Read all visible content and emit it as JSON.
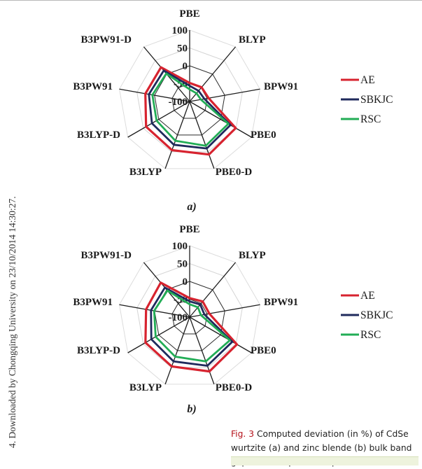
{
  "page": {
    "sidebar_text": "4. Downloaded by Chongqing University on 23/10/2014 14:30:27."
  },
  "caption": {
    "fig_label": "Fig. 3",
    "text": "Computed deviation (in %) of CdSe wurtzite (a) and zinc blende (b) bulk band gaps with respect to experimental data."
  },
  "chart_data": [
    {
      "type": "radar",
      "panel_label": "a)",
      "categories": [
        "PBE",
        "BLYP",
        "BPW91",
        "PBE0",
        "PBE0-D",
        "B3LYP",
        "B3LYP-D",
        "B3PW91",
        "B3PW91-D"
      ],
      "tick_labels": [
        "100",
        "50",
        "0",
        "-50",
        "-100"
      ],
      "rlim": [
        -100,
        100
      ],
      "grid": true,
      "legend_position": "right",
      "series": [
        {
          "name": "AE",
          "color": "#d7232f",
          "values": [
            -48,
            -48,
            -46,
            49,
            58,
            45,
            41,
            26,
            25
          ]
        },
        {
          "name": "SBKJC",
          "color": "#1f2a5c",
          "values": [
            -56,
            -61,
            -58,
            32,
            40,
            29,
            22,
            16,
            13
          ]
        },
        {
          "name": "RSC",
          "color": "#22ad56",
          "values": [
            -66,
            -70,
            -68,
            25,
            32,
            17,
            7,
            6,
            2
          ]
        }
      ]
    },
    {
      "type": "radar",
      "panel_label": "b)",
      "categories": [
        "PBE",
        "BLYP",
        "BPW91",
        "PBE0",
        "PBE0-D",
        "B3LYP",
        "B3LYP-D",
        "B3PW91",
        "B3PW91-D"
      ],
      "tick_labels": [
        "100",
        "50",
        "0",
        "-50",
        "-100"
      ],
      "rlim": [
        -100,
        100
      ],
      "grid": true,
      "legend_position": "right",
      "series": [
        {
          "name": "AE",
          "color": "#d7232f",
          "values": [
            -47,
            -43,
            -44,
            53,
            62,
            47,
            43,
            24,
            26
          ]
        },
        {
          "name": "SBKJC",
          "color": "#1f2a5c",
          "values": [
            -56,
            -54,
            -58,
            38,
            45,
            32,
            24,
            10,
            8
          ]
        },
        {
          "name": "RSC",
          "color": "#22ad56",
          "values": [
            -64,
            -64,
            -68,
            30,
            32,
            18,
            10,
            1,
            -3
          ]
        }
      ]
    }
  ]
}
